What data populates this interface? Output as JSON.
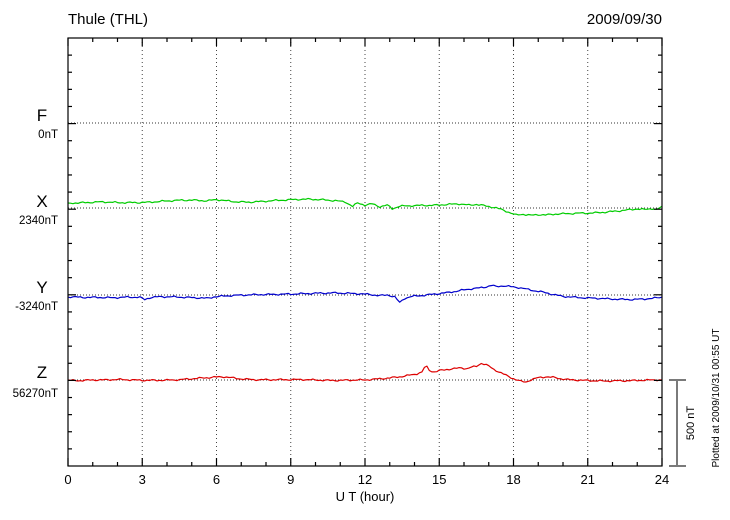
{
  "header": {
    "station_title": "Thule (THL)",
    "date": "2009/09/30"
  },
  "x_axis": {
    "label": "U T (hour)",
    "range": [
      0,
      24
    ],
    "ticks": [
      0,
      3,
      6,
      9,
      12,
      15,
      18,
      21,
      24
    ],
    "minor_step_hours": 1
  },
  "scale_bar": {
    "label": "500 nT",
    "nT": 500
  },
  "footer_note": "Plotted at 2009/10/31 00:55 UT",
  "grid": {
    "vertical_dotted_hours": [
      3,
      6,
      9,
      12,
      15,
      18,
      21
    ],
    "dotted_baselines": true
  },
  "chart_data": {
    "type": "line",
    "title": "Thule (THL)",
    "subtitle": "2009/09/30",
    "xlabel": "U T (hour)",
    "x_range": [
      0,
      24
    ],
    "grid": "dotted",
    "offset_per_division_nT": 500,
    "minor_tick_nT": 100,
    "series": [
      {
        "name": "F",
        "label": "F",
        "baseline_label": "0nT",
        "baseline_value_nT": 0,
        "color": "#FFA500",
        "points": []
      },
      {
        "name": "X",
        "label": "X",
        "baseline_label": "2340nT",
        "baseline_value_nT": 2340,
        "color": "#00CC00",
        "points": [
          [
            0,
            29
          ],
          [
            0.7,
            30
          ],
          [
            1.4,
            34
          ],
          [
            2,
            31
          ],
          [
            2.6,
            33
          ],
          [
            3.2,
            35
          ],
          [
            3.8,
            40
          ],
          [
            4.4,
            43
          ],
          [
            5,
            44
          ],
          [
            5.6,
            41
          ],
          [
            6,
            50
          ],
          [
            6.4,
            44
          ],
          [
            6.8,
            38
          ],
          [
            7.3,
            35
          ],
          [
            7.8,
            37
          ],
          [
            8.3,
            41
          ],
          [
            8.8,
            45
          ],
          [
            9.3,
            50
          ],
          [
            9.8,
            53
          ],
          [
            10.3,
            50
          ],
          [
            10.8,
            44
          ],
          [
            11.2,
            36
          ],
          [
            11.5,
            8
          ],
          [
            11.7,
            28
          ],
          [
            12,
            15
          ],
          [
            12.3,
            22
          ],
          [
            12.6,
            6
          ],
          [
            12.9,
            16
          ],
          [
            13.1,
            -4
          ],
          [
            13.4,
            12
          ],
          [
            13.8,
            15
          ],
          [
            14.3,
            17
          ],
          [
            14.8,
            16
          ],
          [
            15.3,
            19
          ],
          [
            15.8,
            22
          ],
          [
            16.2,
            15
          ],
          [
            16.5,
            21
          ],
          [
            16.9,
            12
          ],
          [
            17.2,
            6
          ],
          [
            17.5,
            -6
          ],
          [
            17.8,
            -22
          ],
          [
            18.1,
            -40
          ],
          [
            18.4,
            -36
          ],
          [
            18.7,
            -44
          ],
          [
            19,
            -40
          ],
          [
            19.3,
            -43
          ],
          [
            19.7,
            -37
          ],
          [
            20.2,
            -33
          ],
          [
            20.7,
            -29
          ],
          [
            21.2,
            -27
          ],
          [
            21.7,
            -23
          ],
          [
            22.2,
            -18
          ],
          [
            22.7,
            -12
          ],
          [
            23,
            -7
          ],
          [
            23.3,
            -11
          ],
          [
            23.6,
            -4
          ],
          [
            23.8,
            -10
          ],
          [
            24,
            10
          ]
        ]
      },
      {
        "name": "Y",
        "label": "Y",
        "baseline_label": "-3240nT",
        "baseline_value_nT": -3240,
        "color": "#0000CC",
        "points": [
          [
            0,
            -12
          ],
          [
            0.6,
            -14
          ],
          [
            1.2,
            -12
          ],
          [
            1.8,
            -14
          ],
          [
            2.4,
            -12
          ],
          [
            2.9,
            -15
          ],
          [
            3.1,
            -28
          ],
          [
            3.35,
            -16
          ],
          [
            3.7,
            -12
          ],
          [
            4.2,
            -11
          ],
          [
            4.7,
            -12
          ],
          [
            5.2,
            -14
          ],
          [
            5.65,
            -18
          ],
          [
            5.9,
            -10
          ],
          [
            6.3,
            -7
          ],
          [
            6.8,
            -4
          ],
          [
            7.3,
            -1
          ],
          [
            7.8,
            2
          ],
          [
            8.3,
            5
          ],
          [
            8.8,
            7
          ],
          [
            9.3,
            8
          ],
          [
            9.8,
            9
          ],
          [
            10.3,
            9
          ],
          [
            10.8,
            10
          ],
          [
            11.3,
            9
          ],
          [
            11.8,
            8
          ],
          [
            12.2,
            5
          ],
          [
            12.6,
            -2
          ],
          [
            12.9,
            2
          ],
          [
            13.2,
            -10
          ],
          [
            13.4,
            -45
          ],
          [
            13.6,
            -20
          ],
          [
            13.9,
            -10
          ],
          [
            14.2,
            -6
          ],
          [
            14.5,
            -2
          ],
          [
            14.8,
            4
          ],
          [
            15.1,
            10
          ],
          [
            15.4,
            16
          ],
          [
            15.7,
            24
          ],
          [
            16,
            32
          ],
          [
            16.3,
            38
          ],
          [
            16.6,
            42
          ],
          [
            16.9,
            48
          ],
          [
            17.1,
            56
          ],
          [
            17.3,
            48
          ],
          [
            17.6,
            52
          ],
          [
            17.9,
            46
          ],
          [
            18.2,
            42
          ],
          [
            18.5,
            34
          ],
          [
            18.8,
            26
          ],
          [
            19.1,
            20
          ],
          [
            19.4,
            12
          ],
          [
            19.7,
            2
          ],
          [
            20,
            -6
          ],
          [
            20.4,
            -12
          ],
          [
            20.8,
            -17
          ],
          [
            21.2,
            -20
          ],
          [
            21.6,
            -23
          ],
          [
            22,
            -25
          ],
          [
            22.4,
            -26
          ],
          [
            22.8,
            -25
          ],
          [
            23.2,
            -22
          ],
          [
            23.6,
            -18
          ],
          [
            24,
            -12
          ]
        ]
      },
      {
        "name": "Z",
        "label": "Z",
        "baseline_label": "56270nT",
        "baseline_value_nT": 56270,
        "color": "#DD0000",
        "points": [
          [
            0,
            0
          ],
          [
            0.5,
            -2
          ],
          [
            1,
            0
          ],
          [
            1.5,
            -1
          ],
          [
            2,
            1
          ],
          [
            2.5,
            0
          ],
          [
            3,
            -1
          ],
          [
            3.5,
            0
          ],
          [
            4,
            1
          ],
          [
            4.5,
            2
          ],
          [
            5,
            6
          ],
          [
            5.5,
            10
          ],
          [
            6,
            16
          ],
          [
            6.3,
            18
          ],
          [
            6.6,
            14
          ],
          [
            7,
            8
          ],
          [
            7.5,
            4
          ],
          [
            8,
            2
          ],
          [
            8.5,
            1
          ],
          [
            9,
            0
          ],
          [
            9.5,
            1
          ],
          [
            10,
            0
          ],
          [
            10.5,
            -1
          ],
          [
            11,
            0
          ],
          [
            11.5,
            1
          ],
          [
            12,
            0
          ],
          [
            12.5,
            4
          ],
          [
            13,
            10
          ],
          [
            13.5,
            20
          ],
          [
            14,
            34
          ],
          [
            14.3,
            48
          ],
          [
            14.45,
            88
          ],
          [
            14.6,
            60
          ],
          [
            14.75,
            48
          ],
          [
            15,
            56
          ],
          [
            15.3,
            62
          ],
          [
            15.6,
            66
          ],
          [
            15.9,
            70
          ],
          [
            16.1,
            64
          ],
          [
            16.3,
            72
          ],
          [
            16.5,
            78
          ],
          [
            16.7,
            96
          ],
          [
            16.85,
            90
          ],
          [
            17,
            80
          ],
          [
            17.2,
            62
          ],
          [
            17.5,
            42
          ],
          [
            17.8,
            22
          ],
          [
            18,
            10
          ],
          [
            18.3,
            -6
          ],
          [
            18.5,
            -10
          ],
          [
            18.7,
            2
          ],
          [
            19,
            14
          ],
          [
            19.3,
            18
          ],
          [
            19.6,
            14
          ],
          [
            19.9,
            6
          ],
          [
            20.2,
            0
          ],
          [
            20.7,
            -2
          ],
          [
            21.2,
            -3
          ],
          [
            21.7,
            -4
          ],
          [
            22.2,
            -3
          ],
          [
            22.7,
            -4
          ],
          [
            23.2,
            -3
          ],
          [
            23.6,
            -2
          ],
          [
            24,
            0
          ]
        ]
      }
    ]
  }
}
